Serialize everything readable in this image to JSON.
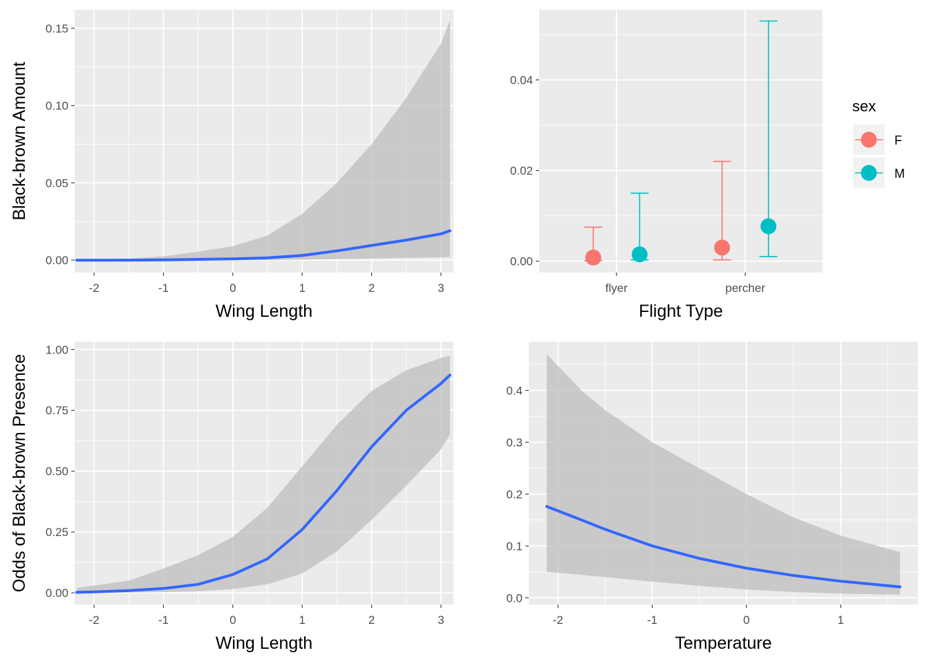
{
  "chart_data": [
    {
      "type": "line",
      "panel": "top-left",
      "xlabel": "Wing Length",
      "ylabel": "Black-brown Amount",
      "xlim": [
        -2.28,
        3.18
      ],
      "ylim": [
        -0.008,
        0.162
      ],
      "xticks": [
        -2,
        -1,
        0,
        1,
        2,
        3
      ],
      "xtick_labels": [
        "-2",
        "-1",
        "0",
        "1",
        "2",
        "3"
      ],
      "yticks": [
        0,
        0.05,
        0.1,
        0.15
      ],
      "ytick_labels": [
        "0.00",
        "0.05",
        "0.10",
        "0.15"
      ],
      "grid": true,
      "colors": {
        "line": "#3366FF",
        "ribbon": "#bdbdbd"
      },
      "series": [
        {
          "x": [
            -2.25,
            -2,
            -1.5,
            -1,
            -0.5,
            0,
            0.5,
            1,
            1.5,
            2,
            2.5,
            3,
            3.13
          ],
          "y": [
            0,
            0,
            0,
            0.0002,
            0.0005,
            0.0008,
            0.0015,
            0.003,
            0.006,
            0.0095,
            0.013,
            0.017,
            0.019
          ],
          "lower": [
            0,
            0,
            0,
            0,
            0,
            0,
            0,
            0.0003,
            0.0007,
            0.001,
            0.0015,
            0.0018,
            0.002
          ],
          "upper": [
            0.0002,
            0.0004,
            0.001,
            0.0025,
            0.0055,
            0.009,
            0.016,
            0.03,
            0.05,
            0.075,
            0.105,
            0.14,
            0.155
          ]
        }
      ]
    },
    {
      "type": "scatter",
      "panel": "top-right",
      "xlabel": "Flight Type",
      "ylabel": "",
      "categories": [
        "flyer",
        "percher"
      ],
      "ylim": [
        -0.0025,
        0.0555
      ],
      "yticks": [
        0,
        0.02,
        0.04
      ],
      "ytick_labels": [
        "0.00",
        "0.02",
        "0.04"
      ],
      "grid": true,
      "legend": {
        "title": "sex",
        "position": "right",
        "entries": [
          "F",
          "M"
        ]
      },
      "series": [
        {
          "name": "F",
          "color": "#F8766D",
          "values": [
            0.0008,
            0.003
          ],
          "lower": [
            0.0001,
            0.0003
          ],
          "upper": [
            0.0075,
            0.022
          ]
        },
        {
          "name": "M",
          "color": "#00BFC4",
          "values": [
            0.0015,
            0.0077
          ],
          "lower": [
            0.0003,
            0.001
          ],
          "upper": [
            0.015,
            0.053
          ]
        }
      ]
    },
    {
      "type": "line",
      "panel": "bottom-left",
      "xlabel": "Wing Length",
      "ylabel": "Odds of Black-brown Presence",
      "xlim": [
        -2.28,
        3.18
      ],
      "ylim": [
        -0.048,
        1.032
      ],
      "xticks": [
        -2,
        -1,
        0,
        1,
        2,
        3
      ],
      "xtick_labels": [
        "-2",
        "-1",
        "0",
        "1",
        "2",
        "3"
      ],
      "yticks": [
        0,
        0.25,
        0.5,
        0.75,
        1
      ],
      "ytick_labels": [
        "0.00",
        "0.25",
        "0.50",
        "0.75",
        "1.00"
      ],
      "grid": true,
      "colors": {
        "line": "#3366FF",
        "ribbon": "#bdbdbd"
      },
      "series": [
        {
          "x": [
            -2.25,
            -2,
            -1.5,
            -1,
            -0.5,
            0,
            0.5,
            1,
            1.5,
            2,
            2.5,
            3,
            3.13
          ],
          "y": [
            0.002,
            0.004,
            0.009,
            0.018,
            0.035,
            0.075,
            0.14,
            0.26,
            0.42,
            0.6,
            0.75,
            0.86,
            0.895
          ],
          "lower": [
            0,
            0,
            0.001,
            0.003,
            0.007,
            0.015,
            0.035,
            0.08,
            0.17,
            0.3,
            0.44,
            0.59,
            0.65
          ],
          "upper": [
            0.02,
            0.03,
            0.05,
            0.1,
            0.155,
            0.23,
            0.35,
            0.52,
            0.69,
            0.83,
            0.915,
            0.965,
            0.975
          ]
        }
      ]
    },
    {
      "type": "line",
      "panel": "bottom-right",
      "xlabel": "Temperature",
      "ylabel": "",
      "xlim": [
        -2.31,
        1.82
      ],
      "ylim": [
        -0.013,
        0.494
      ],
      "xticks": [
        -2,
        -1,
        0,
        1
      ],
      "xtick_labels": [
        "-2",
        "-1",
        "0",
        "1"
      ],
      "yticks": [
        0,
        0.1,
        0.2,
        0.3,
        0.4
      ],
      "ytick_labels": [
        "0.0",
        "0.1",
        "0.2",
        "0.3",
        "0.4"
      ],
      "grid": true,
      "colors": {
        "line": "#3366FF",
        "ribbon": "#bdbdbd"
      },
      "series": [
        {
          "x": [
            -2.12,
            -1.75,
            -1.5,
            -1,
            -0.5,
            0,
            0.5,
            1,
            1.63
          ],
          "y": [
            0.176,
            0.15,
            0.132,
            0.1,
            0.076,
            0.057,
            0.043,
            0.032,
            0.021
          ],
          "lower": [
            0.05,
            0.044,
            0.04,
            0.031,
            0.023,
            0.016,
            0.011,
            0.008,
            0.006
          ],
          "upper": [
            0.47,
            0.4,
            0.362,
            0.3,
            0.25,
            0.2,
            0.155,
            0.12,
            0.088
          ]
        }
      ]
    }
  ]
}
